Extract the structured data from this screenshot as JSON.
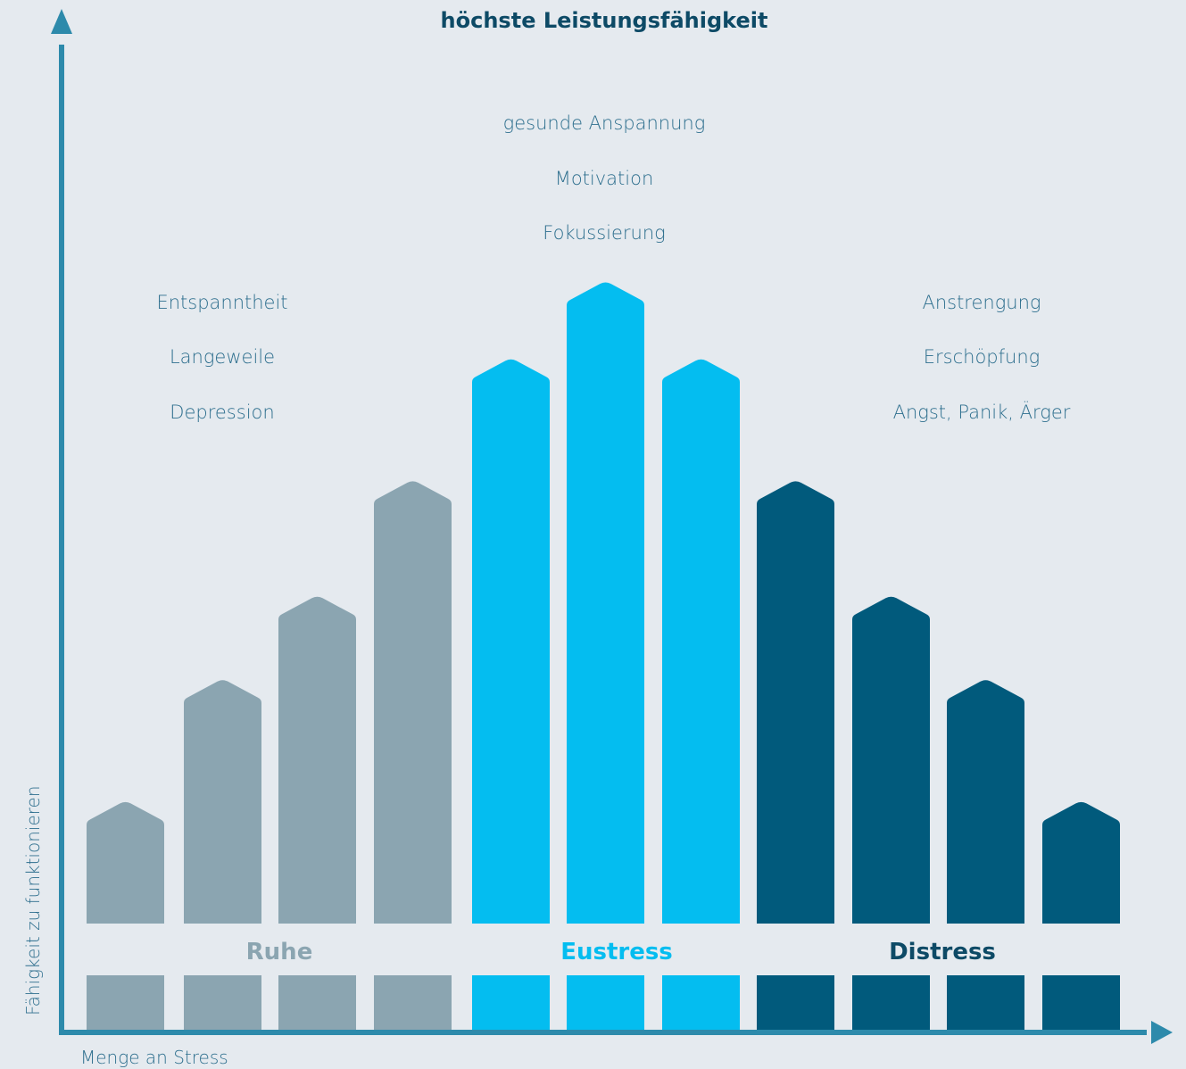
{
  "chart_data": {
    "type": "bar",
    "title": "höchste Leistungsfähigkeit",
    "xlabel": "Menge an Stress",
    "ylabel": "Fähigkeit zu funktionieren",
    "ylim": [
      0,
      100
    ],
    "colors": {
      "background": "#e5eaef",
      "axis": "#2d8aab",
      "ruhe": "#8ba5b1",
      "eustress": "#04bdf0",
      "distress": "#015a7c",
      "description_text": "#2e6f8e",
      "title_text": "#0d4a66"
    },
    "groups": [
      {
        "name": "Ruhe",
        "color": "#8ba5b1",
        "values": [
          19,
          38,
          51,
          69
        ],
        "descriptions": [
          "Entspanntheit",
          "Langeweile",
          "Depression"
        ]
      },
      {
        "name": "Eustress",
        "color": "#04bdf0",
        "values": [
          88,
          100,
          88
        ],
        "descriptions": [
          "gesunde Anspannung",
          "Motivation",
          "Fokussierung"
        ]
      },
      {
        "name": "Distress",
        "color": "#015a7c",
        "values": [
          69,
          51,
          38,
          19
        ],
        "descriptions": [
          "Anstrengung",
          "Erschöpfung",
          "Angst, Panik, Ärger"
        ]
      }
    ]
  }
}
